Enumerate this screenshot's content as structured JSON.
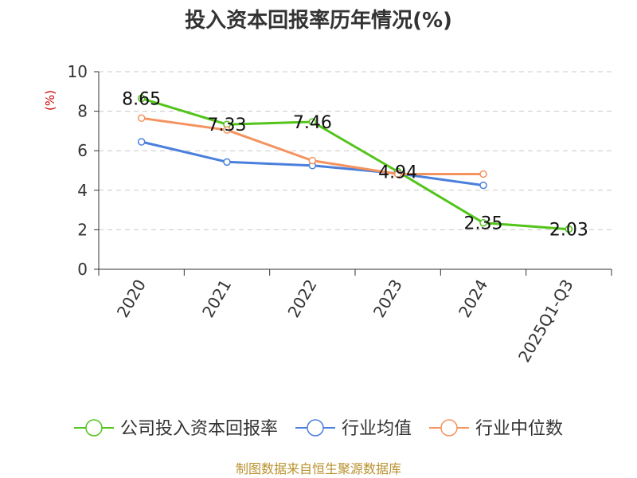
{
  "chart_data": {
    "type": "line",
    "title": "投入资本回报率历年情况(%)",
    "ylabel": "(%)",
    "xlabel": "",
    "categories": [
      "2020",
      "2021",
      "2022",
      "2023",
      "2024",
      "2025Q1-Q3"
    ],
    "ylim": [
      0,
      10
    ],
    "yticks": [
      "0",
      "2",
      "4",
      "6",
      "8",
      "10"
    ],
    "grid": true,
    "legend_position": "bottom",
    "series": [
      {
        "name": "公司投入资本回报率",
        "color": "#52c41a",
        "values": [
          8.65,
          7.33,
          7.46,
          4.94,
          2.35,
          2.03
        ],
        "labels": [
          "8.65",
          "7.33",
          "7.46",
          "4.94",
          "2.35",
          "2.03"
        ]
      },
      {
        "name": "行业均值",
        "color": "#4a7fdc",
        "values": [
          6.45,
          5.43,
          5.25,
          4.85,
          4.25,
          null
        ]
      },
      {
        "name": "行业中位数",
        "color": "#f4935f",
        "values": [
          7.65,
          7.05,
          5.5,
          4.82,
          4.82,
          null
        ]
      }
    ]
  },
  "source": "制图数据来自恒生聚源数据库"
}
